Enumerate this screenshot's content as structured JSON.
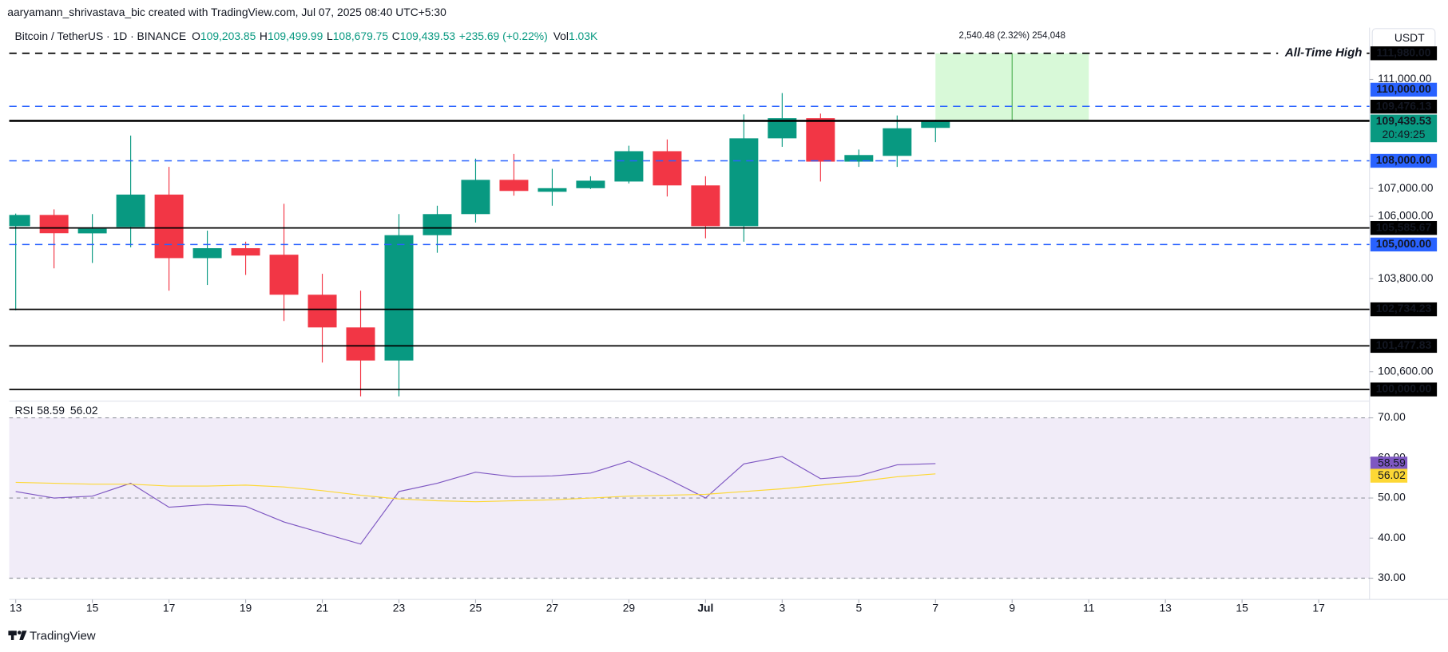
{
  "header": {
    "credit": "aaryamann_shrivastava_bic created with TradingView.com, Jul 07, 2025 08:40 UTC+5:30",
    "symbol": "Bitcoin / TetherUS · 1D · BINANCE",
    "ohlc": [
      {
        "key": "O",
        "text": "109,203.85"
      },
      {
        "key": "H",
        "text": "109,499.99"
      },
      {
        "key": "L",
        "text": "108,679.75"
      },
      {
        "key": "C",
        "text": "109,439.53"
      }
    ],
    "change": "+235.69 (+0.22%)",
    "volume": {
      "key": "Vol",
      "text": "1.03K"
    },
    "currency": "USDT"
  },
  "footer": "TradingView",
  "chart_data": [
    {
      "type": "candlestick",
      "x": [
        "2025-06-13",
        "2025-06-14",
        "2025-06-15",
        "2025-06-16",
        "2025-06-17",
        "2025-06-18",
        "2025-06-19",
        "2025-06-20",
        "2025-06-21",
        "2025-06-22",
        "2025-06-23",
        "2025-06-24",
        "2025-06-25",
        "2025-06-26",
        "2025-06-27",
        "2025-06-28",
        "2025-06-29",
        "2025-06-30",
        "2025-07-01",
        "2025-07-02",
        "2025-07-03",
        "2025-07-04",
        "2025-07-05",
        "2025-07-06",
        "2025-07-07"
      ],
      "open": [
        105650,
        106050,
        105395,
        105620,
        106780,
        104520,
        104870,
        104640,
        103240,
        102110,
        100980,
        105330,
        106080,
        107310,
        106880,
        107010,
        107250,
        108350,
        107110,
        105650,
        108820,
        109560,
        107970,
        108180,
        109203.85
      ],
      "high": [
        106100,
        106250,
        106080,
        108920,
        107780,
        105490,
        105100,
        106450,
        103970,
        103380,
        106080,
        106380,
        108080,
        108250,
        107710,
        107440,
        108550,
        108780,
        107440,
        109700,
        110490,
        109730,
        108410,
        109660,
        109499.99
      ],
      "low": [
        102700,
        104160,
        104350,
        104900,
        103380,
        103580,
        103930,
        102330,
        100910,
        99770,
        99770,
        104710,
        105780,
        106740,
        106380,
        106980,
        107180,
        106710,
        105220,
        105100,
        108510,
        107250,
        107780,
        107780,
        108679.75
      ],
      "close": [
        106050,
        105400,
        105560,
        106780,
        104520,
        104870,
        104610,
        103240,
        102110,
        100980,
        105330,
        106080,
        107310,
        106910,
        107010,
        107280,
        108350,
        107110,
        105650,
        108820,
        109560,
        107970,
        108210,
        109190,
        109439.53
      ],
      "up_color": "#089981",
      "down_color": "#f23645",
      "xlim": [
        "2025-06-13",
        "2025-07-18"
      ],
      "xticks": [
        {
          "value": "2025-06-13",
          "label": "13"
        },
        {
          "value": "2025-06-15",
          "label": "15"
        },
        {
          "value": "2025-06-17",
          "label": "17"
        },
        {
          "value": "2025-06-19",
          "label": "19"
        },
        {
          "value": "2025-06-21",
          "label": "21"
        },
        {
          "value": "2025-06-23",
          "label": "23"
        },
        {
          "value": "2025-06-25",
          "label": "25"
        },
        {
          "value": "2025-06-27",
          "label": "27"
        },
        {
          "value": "2025-06-29",
          "label": "29"
        },
        {
          "value": "2025-07-01",
          "label": "Jul"
        },
        {
          "value": "2025-07-03",
          "label": "3"
        },
        {
          "value": "2025-07-05",
          "label": "5"
        },
        {
          "value": "2025-07-07",
          "label": "7"
        },
        {
          "value": "2025-07-09",
          "label": "9"
        },
        {
          "value": "2025-07-11",
          "label": "11"
        },
        {
          "value": "2025-07-13",
          "label": "13"
        },
        {
          "value": "2025-07-15",
          "label": "15"
        },
        {
          "value": "2025-07-17",
          "label": "17"
        }
      ],
      "ylim": [
        99700,
        112950
      ],
      "log_scale": true,
      "yticks": [
        {
          "value": 111000,
          "label": "111,000.00"
        },
        {
          "value": 107000,
          "label": "107,000.00"
        },
        {
          "value": 106000,
          "label": "106,000.00"
        },
        {
          "value": 103800,
          "label": "103,800.00"
        },
        {
          "value": 100600,
          "label": "100,600.00"
        }
      ],
      "levels": [
        {
          "value": 111980,
          "label": "111,980.00",
          "color": "#000000",
          "style": "dashed",
          "annotation": "All-Time High"
        },
        {
          "value": 110000,
          "label": "110,000.00",
          "color": "#2962ff",
          "style": "dashed"
        },
        {
          "value": 109476.13,
          "label": "109,476.13",
          "color": "#000000",
          "style": "solid"
        },
        {
          "value": 108000,
          "label": "108,000.00",
          "color": "#2962ff",
          "style": "dashed"
        },
        {
          "value": 105585.67,
          "label": "105,585.67",
          "color": "#000000",
          "style": "solid"
        },
        {
          "value": 105000,
          "label": "105,000.00",
          "color": "#2962ff",
          "style": "dashed"
        },
        {
          "value": 102734.23,
          "label": "102,734.23",
          "color": "#000000",
          "style": "solid"
        },
        {
          "value": 101477.83,
          "label": "101,477.83",
          "color": "#000000",
          "style": "solid"
        },
        {
          "value": 100000,
          "label": "100,000.00",
          "color": "#000000",
          "style": "solid"
        }
      ],
      "last_price": {
        "value": 109439.53,
        "label": "109,439.53",
        "countdown": "20:49:25"
      },
      "measure": {
        "x": [
          "2025-07-07",
          "2025-07-11"
        ],
        "y": [
          109439.53,
          111980
        ],
        "label": "2,540.48 (2.32%) 254,048",
        "color": "#90ee90"
      }
    },
    {
      "type": "line",
      "title": "RSI",
      "x": [
        "2025-06-13",
        "2025-06-14",
        "2025-06-15",
        "2025-06-16",
        "2025-06-17",
        "2025-06-18",
        "2025-06-19",
        "2025-06-20",
        "2025-06-21",
        "2025-06-22",
        "2025-06-23",
        "2025-06-24",
        "2025-06-25",
        "2025-06-26",
        "2025-06-27",
        "2025-06-28",
        "2025-06-29",
        "2025-06-30",
        "2025-07-01",
        "2025-07-02",
        "2025-07-03",
        "2025-07-04",
        "2025-07-05",
        "2025-07-06",
        "2025-07-07"
      ],
      "series": [
        {
          "color": "#7e57c2",
          "values": [
            51.61,
            50.0,
            50.46,
            53.68,
            47.7,
            48.39,
            47.93,
            44.02,
            41.26,
            38.51,
            51.61,
            53.68,
            56.44,
            55.29,
            55.52,
            56.21,
            59.2,
            54.83,
            50.0,
            58.51,
            60.34,
            54.83,
            55.52,
            58.28,
            58.59
          ]
        },
        {
          "color": "#fdd835",
          "values": [
            53.91,
            53.68,
            53.45,
            53.45,
            52.99,
            52.99,
            53.22,
            52.76,
            51.84,
            50.69,
            49.77,
            49.31,
            49.08,
            49.31,
            49.54,
            50.0,
            50.46,
            50.69,
            50.92,
            51.61,
            52.3,
            53.22,
            54.14,
            55.29,
            56.02
          ]
        }
      ],
      "ylim": [
        24.7,
        73.7
      ],
      "yticks": [
        {
          "value": 70,
          "label": "70.00"
        },
        {
          "value": 60,
          "label": "60.00"
        },
        {
          "value": 50,
          "label": "50.00"
        },
        {
          "value": 40,
          "label": "40.00"
        },
        {
          "value": 30,
          "label": "30.00"
        }
      ],
      "band": [
        30,
        70
      ],
      "band_color": "#ede7f6",
      "hlines": [
        70,
        50,
        30
      ]
    }
  ]
}
